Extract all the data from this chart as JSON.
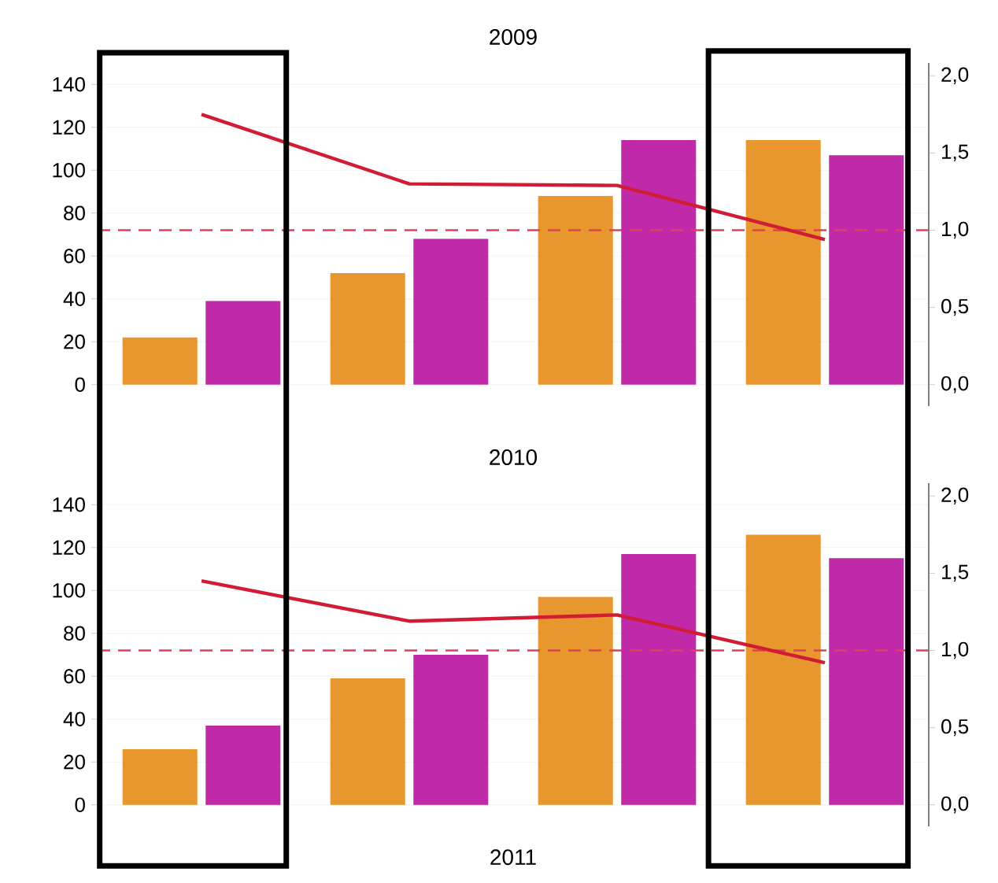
{
  "chart_data": [
    {
      "type": "bar",
      "title": "2009",
      "categories": [
        null,
        null,
        null,
        null
      ],
      "series": [
        {
          "color": "#e8962e",
          "values": [
            22,
            52,
            88,
            114
          ]
        },
        {
          "color": "#c02aa8",
          "values": [
            39,
            68,
            114,
            107
          ]
        },
        {
          "type": "line",
          "axis": "y2",
          "color": "#d01c34",
          "values": [
            1.75,
            1.3,
            1.29,
            0.94
          ]
        }
      ],
      "ylim": [
        -10,
        150
      ],
      "yticks": [
        0,
        20,
        40,
        60,
        80,
        100,
        120,
        140
      ],
      "y2lim": [
        -0.139,
        2.083
      ],
      "y2ticks": [
        {
          "value": 0,
          "label": "0,0"
        },
        {
          "value": 0.5,
          "label": "0,5"
        },
        {
          "value": 1,
          "label": "1,0"
        },
        {
          "value": 1.5,
          "label": "1,5"
        },
        {
          "value": 2,
          "label": "2,0"
        }
      ],
      "grid": "y",
      "ref_lines": [
        {
          "axis": "y2",
          "value": 1.0,
          "color": "#e0405a",
          "line_style": "dashed"
        }
      ]
    },
    {
      "type": "bar",
      "title": "2010",
      "categories": [
        null,
        null,
        null,
        null
      ],
      "series": [
        {
          "color": "#e8962e",
          "values": [
            26,
            59,
            97,
            126
          ]
        },
        {
          "color": "#c02aa8",
          "values": [
            37,
            70,
            117,
            115
          ]
        },
        {
          "type": "line",
          "axis": "y2",
          "color": "#d01c34",
          "values": [
            1.45,
            1.19,
            1.23,
            0.92
          ]
        }
      ],
      "ylim": [
        -10,
        150
      ],
      "yticks": [
        0,
        20,
        40,
        60,
        80,
        100,
        120,
        140
      ],
      "y2lim": [
        -0.139,
        2.083
      ],
      "y2ticks": [
        {
          "value": 0,
          "label": "0,0"
        },
        {
          "value": 0.5,
          "label": "0,5"
        },
        {
          "value": 1,
          "label": "1,0"
        },
        {
          "value": 1.5,
          "label": "1,5"
        },
        {
          "value": 2,
          "label": "2,0"
        }
      ],
      "grid": "y",
      "ref_lines": [
        {
          "axis": "y2",
          "value": 1.0,
          "color": "#e0405a",
          "line_style": "dashed"
        }
      ],
      "annotations": [
        "2011"
      ]
    }
  ]
}
